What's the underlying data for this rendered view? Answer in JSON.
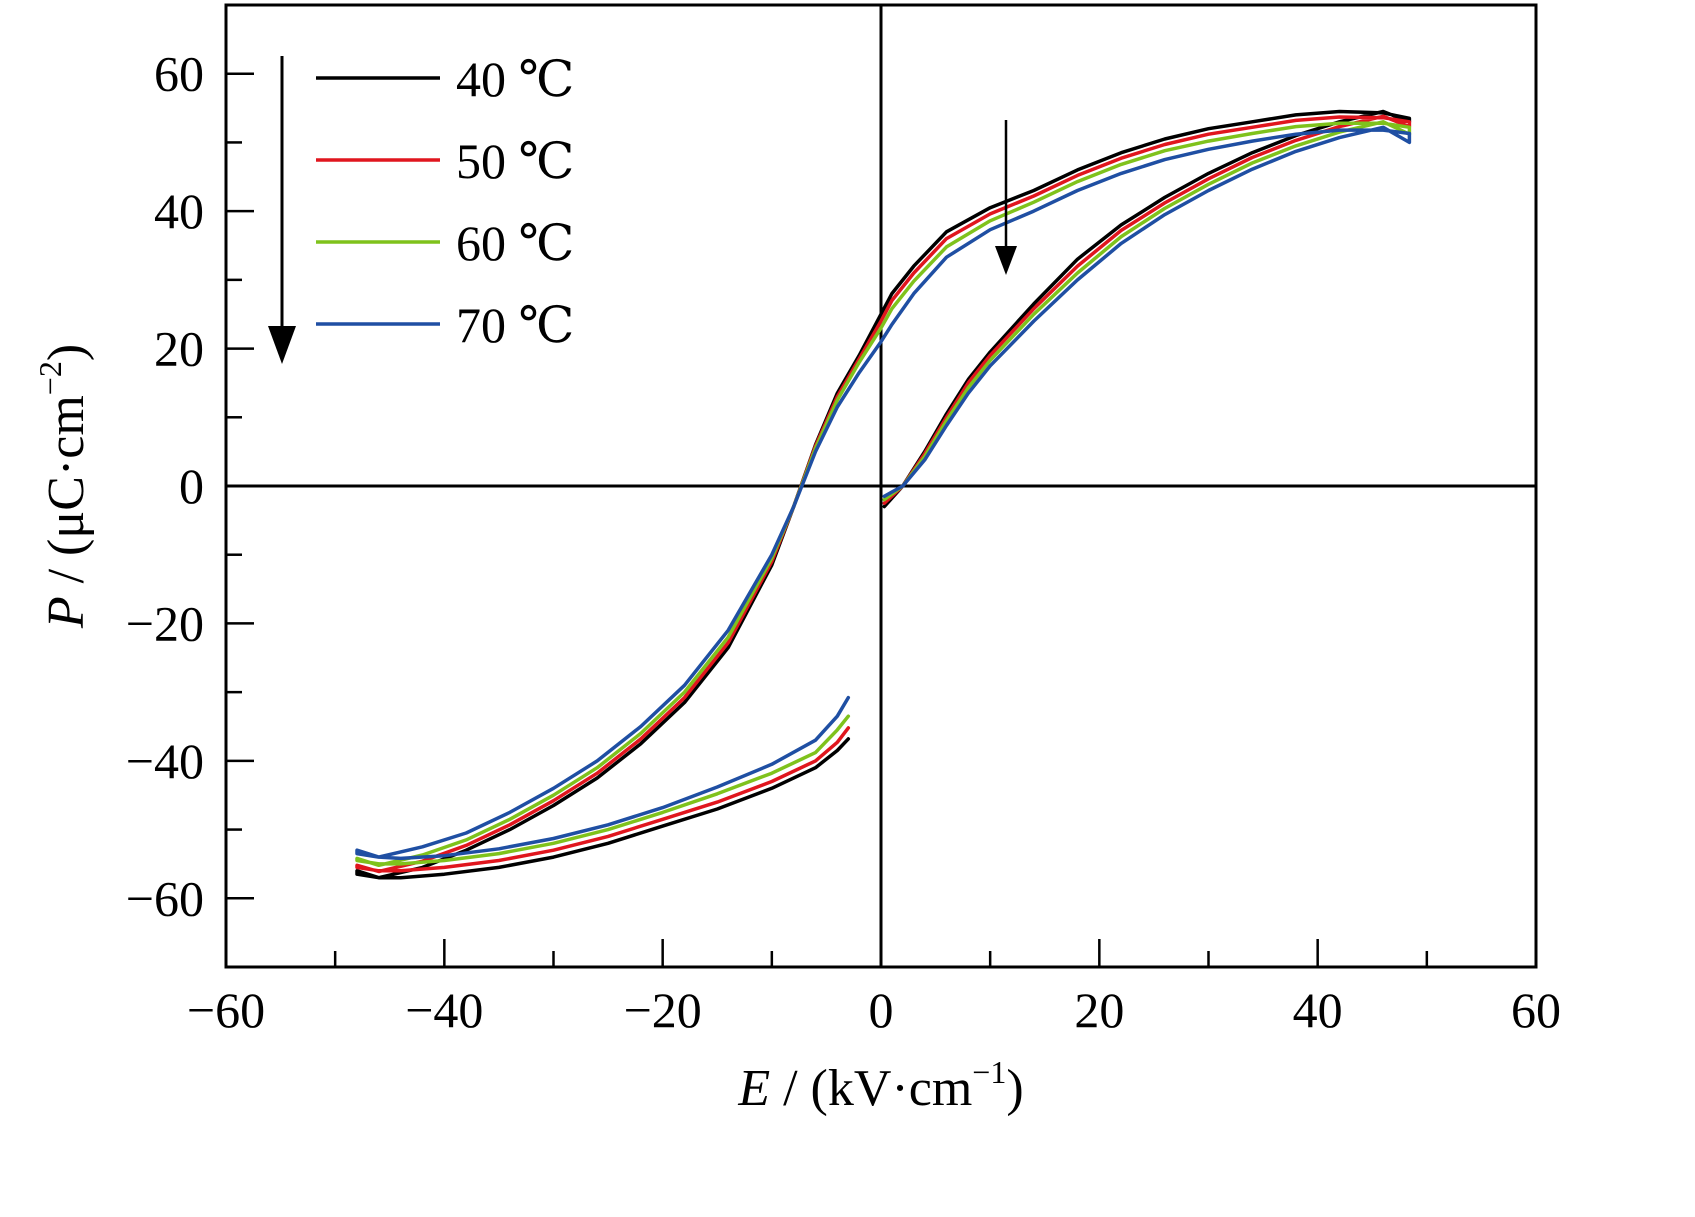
{
  "chart_data": {
    "type": "line",
    "title": "",
    "xlabel": {
      "var": "E",
      "rest": " / (kV·cm",
      "sup": "−1",
      "close": ")"
    },
    "ylabel": {
      "var": "P",
      "rest": " / (μC·cm",
      "sup": "−2",
      "close": ")"
    },
    "xlim": [
      -60,
      60
    ],
    "ylim": [
      -70,
      70
    ],
    "xticks": [
      -60,
      -40,
      -20,
      0,
      20,
      40,
      60
    ],
    "yticks": [
      -60,
      -40,
      -20,
      0,
      20,
      40,
      60
    ],
    "xtick_labels": [
      "−60",
      "−40",
      "−20",
      "0",
      "20",
      "40",
      "60"
    ],
    "ytick_labels": [
      "−60",
      "−40",
      "−20",
      "0",
      "20",
      "40",
      "60"
    ],
    "grid": false,
    "legend": "top-left",
    "series": [
      {
        "name": "40 ℃",
        "color": "#000000",
        "x": [
          0.3,
          2,
          4,
          6,
          8,
          10,
          14,
          18,
          22,
          26,
          30,
          34,
          38,
          42,
          46,
          48.4,
          48.4,
          46,
          42,
          38,
          34,
          30,
          26,
          22,
          18,
          14,
          10,
          6,
          3,
          1,
          0,
          -2,
          -4,
          -6,
          -8,
          -10,
          -14,
          -18,
          -22,
          -26,
          -30,
          -34,
          -38,
          -42,
          -46,
          -48,
          -48,
          -46,
          -44,
          -40,
          -35,
          -30,
          -25,
          -20,
          -15,
          -10,
          -6,
          -4,
          -3
        ],
        "y": [
          -3,
          0,
          5,
          10.5,
          15.5,
          19.5,
          26.5,
          33,
          38,
          42,
          45.5,
          48.5,
          51,
          53,
          54.5,
          53,
          53.5,
          54.3,
          54.5,
          54,
          53,
          52,
          50.5,
          48.5,
          46,
          43,
          40.5,
          37,
          32,
          28,
          25,
          19,
          13.5,
          6,
          -3,
          -11.5,
          -23.5,
          -31.5,
          -37.5,
          -42.5,
          -46.5,
          -50,
          -53,
          -55.5,
          -57,
          -56,
          -56.5,
          -57,
          -57,
          -56.5,
          -55.5,
          -54,
          -52,
          -49.5,
          -47,
          -44,
          -41,
          -38.5,
          -36.8
        ]
      },
      {
        "name": "50 ℃",
        "color": "#e0161e",
        "x": [
          0.3,
          2,
          4,
          6,
          8,
          10,
          14,
          18,
          22,
          26,
          30,
          34,
          38,
          42,
          46,
          48.4,
          48.4,
          46,
          42,
          38,
          34,
          30,
          26,
          22,
          18,
          14,
          10,
          6,
          3,
          1,
          0,
          -2,
          -4,
          -6,
          -8,
          -10,
          -14,
          -18,
          -22,
          -26,
          -30,
          -34,
          -38,
          -42,
          -46,
          -48,
          -48,
          -46,
          -44,
          -40,
          -35,
          -30,
          -25,
          -20,
          -15,
          -10,
          -6,
          -4,
          -3
        ],
        "y": [
          -2.5,
          0,
          4.7,
          10,
          15,
          19,
          25.8,
          32,
          37.2,
          41.2,
          44.7,
          47.8,
          50.3,
          52.3,
          53.8,
          52.3,
          53,
          53.6,
          53.7,
          53.2,
          52.2,
          51.2,
          49.7,
          47.7,
          45.2,
          42.2,
          39.6,
          36,
          31,
          27,
          24,
          18.5,
          13,
          5.8,
          -3,
          -11,
          -22.8,
          -30.8,
          -36.8,
          -41.8,
          -45.8,
          -49.3,
          -52.3,
          -54.6,
          -56.1,
          -55.2,
          -55.5,
          -56,
          -56,
          -55.5,
          -54.5,
          -53,
          -51,
          -48.5,
          -46,
          -43,
          -40,
          -37.3,
          -35.2
        ]
      },
      {
        "name": "60 ℃",
        "color": "#7fc21c",
        "x": [
          0.3,
          2,
          4,
          6,
          8,
          10,
          14,
          18,
          22,
          26,
          30,
          34,
          38,
          42,
          46,
          48.4,
          48.4,
          46,
          42,
          38,
          34,
          30,
          26,
          22,
          18,
          14,
          10,
          6,
          3,
          1,
          0,
          -2,
          -4,
          -6,
          -8,
          -10,
          -14,
          -18,
          -22,
          -26,
          -30,
          -34,
          -38,
          -42,
          -46,
          -48,
          -48,
          -46,
          -44,
          -40,
          -35,
          -30,
          -25,
          -20,
          -15,
          -10,
          -6,
          -4,
          -3
        ],
        "y": [
          -2,
          0,
          4.3,
          9.5,
          14.3,
          18.3,
          25,
          31,
          36.3,
          40.4,
          43.9,
          47,
          49.5,
          51.5,
          53,
          51.2,
          52.2,
          52.8,
          52.8,
          52.3,
          51.3,
          50.2,
          48.8,
          46.8,
          44.3,
          41.3,
          38.6,
          34.8,
          29.8,
          25.8,
          23,
          18,
          12.5,
          5.5,
          -3,
          -10.5,
          -22,
          -30,
          -36,
          -41,
          -45,
          -48.5,
          -51.5,
          -53.7,
          -55.2,
          -54.2,
          -54.5,
          -55,
          -55,
          -54.5,
          -53.5,
          -52,
          -50,
          -47.5,
          -44.8,
          -41.8,
          -38.8,
          -35.5,
          -33.5
        ]
      },
      {
        "name": "70 ℃",
        "color": "#1f4fa3",
        "x": [
          0.3,
          2,
          4,
          6,
          8,
          10,
          14,
          18,
          22,
          26,
          30,
          34,
          38,
          42,
          46,
          48.4,
          48.4,
          46,
          42,
          38,
          34,
          30,
          26,
          22,
          18,
          14,
          10,
          6,
          3,
          1,
          0,
          -2,
          -4,
          -6,
          -8,
          -10,
          -14,
          -18,
          -22,
          -26,
          -30,
          -34,
          -38,
          -42,
          -46,
          -48,
          -48,
          -46,
          -44,
          -40,
          -35,
          -30,
          -25,
          -20,
          -15,
          -10,
          -6,
          -4,
          -3
        ],
        "y": [
          -1.5,
          0,
          3.8,
          8.8,
          13.5,
          17.5,
          24,
          30,
          35.3,
          39.5,
          43,
          46.1,
          48.7,
          50.7,
          52.2,
          50,
          51.3,
          51.8,
          51.8,
          51.2,
          50.2,
          49,
          47.5,
          45.5,
          43,
          40,
          37.3,
          33.3,
          28,
          23.5,
          21,
          16.5,
          11.5,
          5,
          -3,
          -10,
          -21,
          -29,
          -35,
          -40,
          -44,
          -47.5,
          -50.5,
          -52.5,
          -54,
          -53,
          -53.5,
          -54,
          -54.2,
          -53.8,
          -52.8,
          -51.3,
          -49.3,
          -46.8,
          -43.8,
          -40.5,
          -37,
          -33.5,
          -30.8
        ]
      }
    ]
  }
}
